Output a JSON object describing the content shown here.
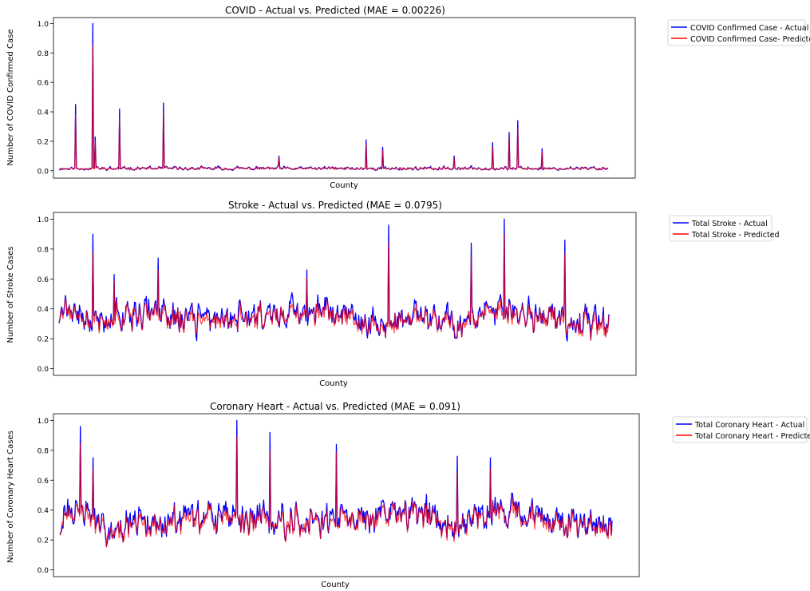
{
  "chart_data": [
    {
      "type": "line",
      "title": "COVID - Actual vs. Predicted (MAE = 0.00226)",
      "xlabel": "County",
      "ylabel": "Number of COVID Confirmed Case",
      "ylim": [
        -0.05,
        1.04
      ],
      "yticks": [
        "0.0",
        "0.2",
        "0.4",
        "0.6",
        "0.8",
        "1.0"
      ],
      "grid": false,
      "legend_position": "outside-top-right",
      "n_points": 700,
      "profile": {
        "base": 0.015,
        "amp": 0.015,
        "skew": 2.2,
        "trend": [
          [
            0,
            0.0
          ],
          [
            1,
            0.0
          ]
        ]
      },
      "spikes": [
        [
          0.03,
          0.45
        ],
        [
          0.062,
          1.0
        ],
        [
          0.066,
          0.23
        ],
        [
          0.11,
          0.42
        ],
        [
          0.19,
          0.46
        ],
        [
          0.56,
          0.21
        ],
        [
          0.59,
          0.16
        ],
        [
          0.82,
          0.26
        ],
        [
          0.835,
          0.34
        ],
        [
          0.79,
          0.19
        ],
        [
          0.88,
          0.15
        ],
        [
          0.4,
          0.1
        ],
        [
          0.72,
          0.1
        ]
      ],
      "series": [
        {
          "name": "COVID Confirmed Case - Actual",
          "color": "#0000ff",
          "seed": 11
        },
        {
          "name": "COVID Confirmed Case- Predicted",
          "color": "#ff0000",
          "seed": 12
        }
      ]
    },
    {
      "type": "line",
      "title": "Stroke - Actual vs. Predicted (MAE = 0.0795)",
      "xlabel": "County",
      "ylabel": "Number of Stroke Cases",
      "ylim": [
        -0.045,
        1.045
      ],
      "yticks": [
        "0.0",
        "0.2",
        "0.4",
        "0.6",
        "0.8",
        "1.0"
      ],
      "grid": false,
      "legend_position": "outside-top-right",
      "n_points": 700,
      "profile": {
        "base": 0.27,
        "amp": 0.13,
        "skew": 1.0,
        "trend": [
          [
            0,
            0.12
          ],
          [
            0.05,
            0.0
          ],
          [
            0.15,
            0.07
          ],
          [
            0.25,
            0.0
          ],
          [
            0.4,
            0.06
          ],
          [
            0.5,
            0.05
          ],
          [
            0.6,
            -0.05
          ],
          [
            0.63,
            0.04
          ],
          [
            0.75,
            0.0
          ],
          [
            0.8,
            0.07
          ],
          [
            1,
            -0.04
          ]
        ]
      },
      "spikes": [
        [
          0.062,
          0.9
        ],
        [
          0.18,
          0.74
        ],
        [
          0.6,
          0.96
        ],
        [
          0.75,
          0.84
        ],
        [
          0.81,
          1.0
        ],
        [
          0.92,
          0.86
        ],
        [
          0.1,
          0.63
        ],
        [
          0.45,
          0.66
        ]
      ],
      "series": [
        {
          "name": "Total Stroke - Actual",
          "color": "#0000ff",
          "seed": 21
        },
        {
          "name": "Total Stroke - Predicted",
          "color": "#ff0000",
          "seed": 22
        }
      ]
    },
    {
      "type": "line",
      "title": "Coronary Heart - Actual vs. Predicted (MAE = 0.091)",
      "xlabel": "County",
      "ylabel": "Number of Coronary Heart Cases",
      "ylim": [
        -0.045,
        1.045
      ],
      "yticks": [
        "0.0",
        "0.2",
        "0.4",
        "0.6",
        "0.8",
        "1.0"
      ],
      "grid": false,
      "legend_position": "outside-top-right",
      "n_points": 700,
      "profile": {
        "base": 0.28,
        "amp": 0.14,
        "skew": 1.0,
        "trend": [
          [
            0,
            0.0
          ],
          [
            0.04,
            0.08
          ],
          [
            0.07,
            -0.05
          ],
          [
            0.3,
            0.02
          ],
          [
            0.5,
            0.0
          ],
          [
            0.65,
            0.06
          ],
          [
            0.72,
            -0.03
          ],
          [
            0.78,
            0.1
          ],
          [
            0.85,
            0.0
          ],
          [
            1,
            -0.03
          ]
        ]
      },
      "spikes": [
        [
          0.037,
          0.96
        ],
        [
          0.32,
          1.0
        ],
        [
          0.38,
          0.92
        ],
        [
          0.06,
          0.75
        ],
        [
          0.5,
          0.84
        ],
        [
          0.72,
          0.76
        ],
        [
          0.78,
          0.75
        ]
      ],
      "series": [
        {
          "name": "Total Coronary Heart - Actual",
          "color": "#0000ff",
          "seed": 31
        },
        {
          "name": "Total Coronary Heart - Predicted",
          "color": "#ff0000",
          "seed": 32
        }
      ]
    }
  ]
}
